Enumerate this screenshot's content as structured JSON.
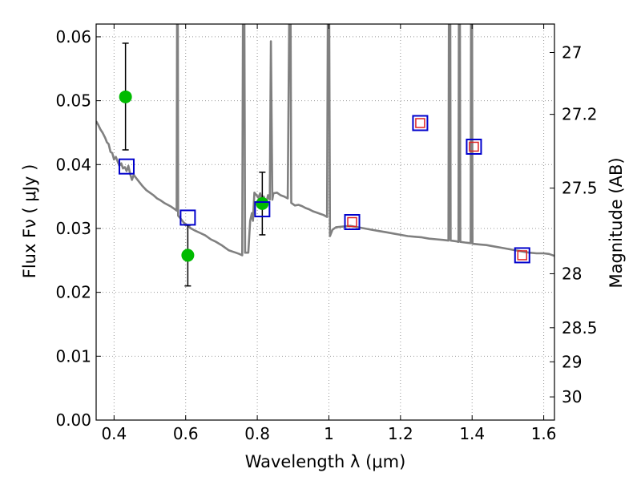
{
  "chart_data": {
    "type": "scatter",
    "xlabel": "Wavelength  λ (μm)",
    "ylabel": "Flux  Fν  ( μJy )",
    "ylabel_right": "Magnitude (AB)",
    "xlim": [
      0.35,
      1.63
    ],
    "ylim": [
      0.0,
      0.062
    ],
    "grid": true,
    "x_ticks": [
      {
        "value": 0.4,
        "label": "0.4"
      },
      {
        "value": 0.6,
        "label": "0.6"
      },
      {
        "value": 0.8,
        "label": "0.8"
      },
      {
        "value": 1.0,
        "label": "1"
      },
      {
        "value": 1.2,
        "label": "1.2"
      },
      {
        "value": 1.4,
        "label": "1.4"
      },
      {
        "value": 1.6,
        "label": "1.6"
      }
    ],
    "y_ticks": [
      {
        "value": 0.0,
        "label": "0.00"
      },
      {
        "value": 0.01,
        "label": "0.01"
      },
      {
        "value": 0.02,
        "label": "0.02"
      },
      {
        "value": 0.03,
        "label": "0.03"
      },
      {
        "value": 0.04,
        "label": "0.04"
      },
      {
        "value": 0.05,
        "label": "0.05"
      },
      {
        "value": 0.06,
        "label": "0.06"
      }
    ],
    "right_ticks": [
      {
        "mag": 27.0,
        "label": "27"
      },
      {
        "mag": 27.2,
        "label": "27.2"
      },
      {
        "mag": 27.5,
        "label": "27.5"
      },
      {
        "mag": 28.0,
        "label": "28"
      },
      {
        "mag": 28.5,
        "label": "28.5"
      },
      {
        "mag": 29.0,
        "label": "29"
      },
      {
        "mag": 30.0,
        "label": "30"
      }
    ],
    "colors": {
      "spectrum": "#808080",
      "observed": "#00bb00",
      "model_outer": "#0000cc",
      "model_inner": "#dd2222",
      "errorbar": "#000000",
      "grid": "#999999"
    },
    "spectrum": [
      [
        0.35,
        0.0468
      ],
      [
        0.356,
        0.0462
      ],
      [
        0.362,
        0.0455
      ],
      [
        0.368,
        0.045
      ],
      [
        0.375,
        0.0442
      ],
      [
        0.38,
        0.0435
      ],
      [
        0.385,
        0.0432
      ],
      [
        0.39,
        0.042
      ],
      [
        0.395,
        0.0418
      ],
      [
        0.4,
        0.0408
      ],
      [
        0.405,
        0.0412
      ],
      [
        0.41,
        0.0405
      ],
      [
        0.415,
        0.0398
      ],
      [
        0.42,
        0.0402
      ],
      [
        0.425,
        0.0394
      ],
      [
        0.43,
        0.0396
      ],
      [
        0.435,
        0.039
      ],
      [
        0.44,
        0.0398
      ],
      [
        0.445,
        0.0385
      ],
      [
        0.45,
        0.0376
      ],
      [
        0.455,
        0.0384
      ],
      [
        0.46,
        0.038
      ],
      [
        0.47,
        0.0373
      ],
      [
        0.48,
        0.0366
      ],
      [
        0.49,
        0.036
      ],
      [
        0.5,
        0.0356
      ],
      [
        0.51,
        0.0352
      ],
      [
        0.52,
        0.0347
      ],
      [
        0.53,
        0.0344
      ],
      [
        0.54,
        0.034
      ],
      [
        0.55,
        0.0337
      ],
      [
        0.56,
        0.0334
      ],
      [
        0.57,
        0.033
      ],
      [
        0.575,
        0.0328
      ],
      [
        0.576,
        0.062
      ],
      [
        0.578,
        0.062
      ],
      [
        0.579,
        0.032
      ],
      [
        0.585,
        0.0316
      ],
      [
        0.595,
        0.0309
      ],
      [
        0.605,
        0.0305
      ],
      [
        0.615,
        0.03
      ],
      [
        0.625,
        0.0297
      ],
      [
        0.64,
        0.0293
      ],
      [
        0.655,
        0.0289
      ],
      [
        0.67,
        0.0283
      ],
      [
        0.685,
        0.0279
      ],
      [
        0.7,
        0.0274
      ],
      [
        0.71,
        0.027
      ],
      [
        0.72,
        0.0266
      ],
      [
        0.73,
        0.0264
      ],
      [
        0.74,
        0.0262
      ],
      [
        0.75,
        0.026
      ],
      [
        0.758,
        0.0258
      ],
      [
        0.76,
        0.062
      ],
      [
        0.764,
        0.062
      ],
      [
        0.766,
        0.0262
      ],
      [
        0.775,
        0.0262
      ],
      [
        0.78,
        0.0312
      ],
      [
        0.785,
        0.0324
      ],
      [
        0.788,
        0.0312
      ],
      [
        0.792,
        0.0356
      ],
      [
        0.798,
        0.0352
      ],
      [
        0.803,
        0.0348
      ],
      [
        0.808,
        0.0355
      ],
      [
        0.812,
        0.0345
      ],
      [
        0.818,
        0.035
      ],
      [
        0.825,
        0.034
      ],
      [
        0.83,
        0.0352
      ],
      [
        0.835,
        0.0345
      ],
      [
        0.838,
        0.0593
      ],
      [
        0.842,
        0.0345
      ],
      [
        0.845,
        0.0355
      ],
      [
        0.855,
        0.0356
      ],
      [
        0.865,
        0.0352
      ],
      [
        0.875,
        0.035
      ],
      [
        0.885,
        0.0347
      ],
      [
        0.889,
        0.062
      ],
      [
        0.893,
        0.062
      ],
      [
        0.895,
        0.034
      ],
      [
        0.905,
        0.0336
      ],
      [
        0.915,
        0.0337
      ],
      [
        0.925,
        0.0335
      ],
      [
        0.935,
        0.0332
      ],
      [
        0.945,
        0.033
      ],
      [
        0.955,
        0.0327
      ],
      [
        0.965,
        0.0325
      ],
      [
        0.975,
        0.0323
      ],
      [
        0.985,
        0.0321
      ],
      [
        0.995,
        0.0318
      ],
      [
        0.997,
        0.062
      ],
      [
        1.001,
        0.062
      ],
      [
        1.003,
        0.0288
      ],
      [
        1.01,
        0.0298
      ],
      [
        1.02,
        0.0302
      ],
      [
        1.04,
        0.0303
      ],
      [
        1.06,
        0.0304
      ],
      [
        1.08,
        0.0302
      ],
      [
        1.1,
        0.03
      ],
      [
        1.12,
        0.0298
      ],
      [
        1.14,
        0.0296
      ],
      [
        1.16,
        0.0294
      ],
      [
        1.18,
        0.0292
      ],
      [
        1.2,
        0.029
      ],
      [
        1.22,
        0.0288
      ],
      [
        1.24,
        0.0287
      ],
      [
        1.26,
        0.0286
      ],
      [
        1.28,
        0.0284
      ],
      [
        1.3,
        0.0283
      ],
      [
        1.32,
        0.0282
      ],
      [
        1.334,
        0.0281
      ],
      [
        1.335,
        0.062
      ],
      [
        1.339,
        0.062
      ],
      [
        1.34,
        0.0281
      ],
      [
        1.355,
        0.028
      ],
      [
        1.362,
        0.0279
      ],
      [
        1.363,
        0.062
      ],
      [
        1.366,
        0.062
      ],
      [
        1.367,
        0.0279
      ],
      [
        1.38,
        0.0278
      ],
      [
        1.396,
        0.0277
      ],
      [
        1.397,
        0.062
      ],
      [
        1.4,
        0.062
      ],
      [
        1.401,
        0.0276
      ],
      [
        1.42,
        0.0275
      ],
      [
        1.44,
        0.0274
      ],
      [
        1.46,
        0.0272
      ],
      [
        1.48,
        0.027
      ],
      [
        1.5,
        0.0268
      ],
      [
        1.52,
        0.0266
      ],
      [
        1.54,
        0.0264
      ],
      [
        1.56,
        0.0262
      ],
      [
        1.58,
        0.0261
      ],
      [
        1.6,
        0.0261
      ],
      [
        1.615,
        0.026
      ],
      [
        1.63,
        0.0257
      ]
    ],
    "observed": [
      {
        "x": 0.432,
        "y": 0.0506,
        "err_low": 0.0423,
        "err_high": 0.059
      },
      {
        "x": 0.606,
        "y": 0.0258,
        "err_low": 0.021,
        "err_high": 0.0305
      },
      {
        "x": 0.814,
        "y": 0.0339,
        "err_low": 0.029,
        "err_high": 0.0388
      }
    ],
    "model_points": [
      {
        "x": 0.435,
        "y": 0.0397,
        "inner": false
      },
      {
        "x": 0.606,
        "y": 0.0317,
        "inner": false
      },
      {
        "x": 0.814,
        "y": 0.033,
        "inner": false
      },
      {
        "x": 1.065,
        "y": 0.031,
        "inner": true
      },
      {
        "x": 1.255,
        "y": 0.0465,
        "inner": true
      },
      {
        "x": 1.405,
        "y": 0.0428,
        "inner": true
      },
      {
        "x": 1.54,
        "y": 0.0258,
        "inner": true
      }
    ]
  }
}
